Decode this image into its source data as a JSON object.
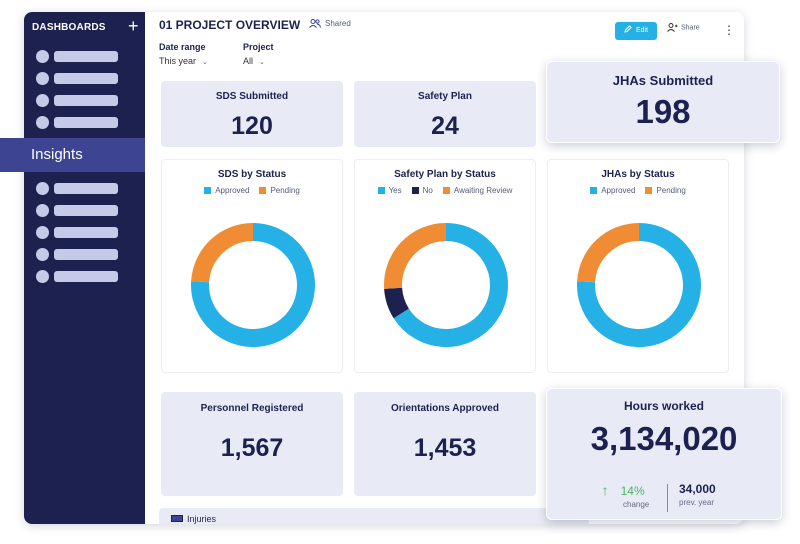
{
  "sidebar": {
    "header": "DASHBOARDS",
    "add_label": "+",
    "insights_label": "Insights"
  },
  "header": {
    "title": "01 PROJECT OVERVIEW",
    "shared_label": "Shared",
    "edit_label": "Edit",
    "share_label": "Share",
    "more_label": "⋮"
  },
  "filters": {
    "date_range": {
      "label": "Date range",
      "value": "This year"
    },
    "project": {
      "label": "Project",
      "value": "All"
    }
  },
  "metrics": {
    "sds_submitted": {
      "label": "SDS Submitted",
      "value": "120"
    },
    "safety_plan": {
      "label": "Safety Plan",
      "value": "24"
    },
    "jhas_submitted": {
      "label": "JHAs Submitted",
      "value": "198"
    },
    "personnel_registered": {
      "label": "Personnel Registered",
      "value": "1,567"
    },
    "orientations_approved": {
      "label": "Orientations Approved",
      "value": "1,453"
    },
    "hours_worked": {
      "label": "Hours worked",
      "value": "3,134,020",
      "change_value": "14%",
      "change_label": "change",
      "prev_value": "34,000",
      "prev_label": "prev. year"
    }
  },
  "injuries_label": "Injuries",
  "colors": {
    "approved": "#25b1e5",
    "pending": "#f08c33",
    "no": "#1d2150"
  },
  "chart_data": [
    {
      "type": "pie",
      "title": "SDS by Status",
      "categories": [
        "Approved",
        "Pending"
      ],
      "values": [
        76,
        24
      ],
      "colors": [
        "#25b1e5",
        "#f08c33"
      ]
    },
    {
      "type": "pie",
      "title": "Safety Plan by Status",
      "categories": [
        "Yes",
        "No",
        "Awaiting Review"
      ],
      "values": [
        66,
        8,
        26
      ],
      "colors": [
        "#25b1e5",
        "#1d2150",
        "#f08c33"
      ]
    },
    {
      "type": "pie",
      "title": "JHAs by Status",
      "categories": [
        "Approved",
        "Pending"
      ],
      "values": [
        76,
        24
      ],
      "colors": [
        "#25b1e5",
        "#f08c33"
      ]
    }
  ]
}
